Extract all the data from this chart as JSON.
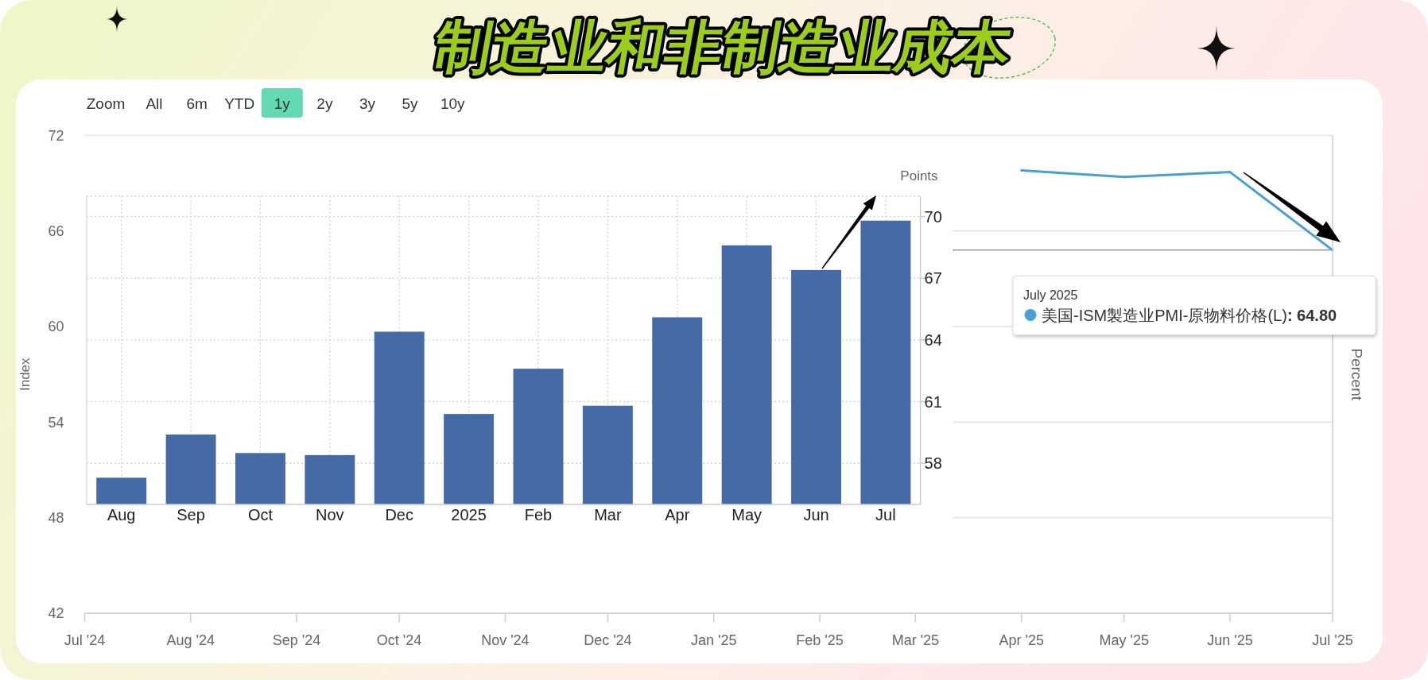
{
  "chart_data": [
    {
      "type": "line",
      "title": "制造业和非制造业成本",
      "ylabel": "Index",
      "y2label": "Percent",
      "xlim": [
        "2024-07",
        "2025-07"
      ],
      "xticks": [
        {
          "value": "2024-07",
          "label": "Jul '24"
        },
        {
          "value": "2024-08",
          "label": "Aug '24"
        },
        {
          "value": "2024-09",
          "label": "Sep '24"
        },
        {
          "value": "2024-10",
          "label": "Oct '24"
        },
        {
          "value": "2024-11",
          "label": "Nov '24"
        },
        {
          "value": "2024-12",
          "label": "Dec '24"
        },
        {
          "value": "2025-01",
          "label": "Jan '25"
        },
        {
          "value": "2025-02",
          "label": "Feb '25"
        },
        {
          "value": "2025-03",
          "label": "Mar '25"
        },
        {
          "value": "2025-04",
          "label": "Apr '25"
        },
        {
          "value": "2025-05",
          "label": "May '25"
        },
        {
          "value": "2025-06",
          "label": "Jun '25"
        },
        {
          "value": "2025-07",
          "label": "Jul '25"
        }
      ],
      "ylim": [
        42,
        72
      ],
      "yticks": [
        42,
        48,
        54,
        60,
        66,
        72
      ],
      "grid": "y",
      "series": [
        {
          "name": "美国-ISM製造业PMI-原物料价格(L)",
          "color": "#4a9fd0",
          "x": [
            "2025-04",
            "2025-05",
            "2025-06",
            "2025-07"
          ],
          "values": [
            69.8,
            69.4,
            69.7,
            64.8
          ]
        }
      ],
      "ref_lines": [
        {
          "axis": "y",
          "value": 64.8,
          "color": "#9a9a9a"
        }
      ],
      "annotations": [
        "Zoom",
        "All",
        "6m",
        "YTD",
        "1y",
        "2y",
        "3y",
        "5y",
        "10y",
        "July 2025",
        ": 64.80"
      ]
    },
    {
      "type": "bar",
      "categories": [
        "Aug",
        "Sep",
        "Oct",
        "Nov",
        "Dec",
        "2025",
        "Feb",
        "Mar",
        "Apr",
        "May",
        "Jun",
        "Jul"
      ],
      "series": [
        {
          "color": "#456aa6",
          "axis": "y2",
          "values": [
            57.3,
            59.4,
            58.5,
            58.4,
            64.4,
            60.4,
            62.6,
            60.8,
            65.1,
            68.6,
            67.4,
            69.8
          ]
        }
      ],
      "y2label": "Points",
      "y2lim": [
        56,
        71
      ],
      "y2ticks": [
        58,
        61,
        64,
        67,
        70
      ],
      "grid": true
    }
  ]
}
